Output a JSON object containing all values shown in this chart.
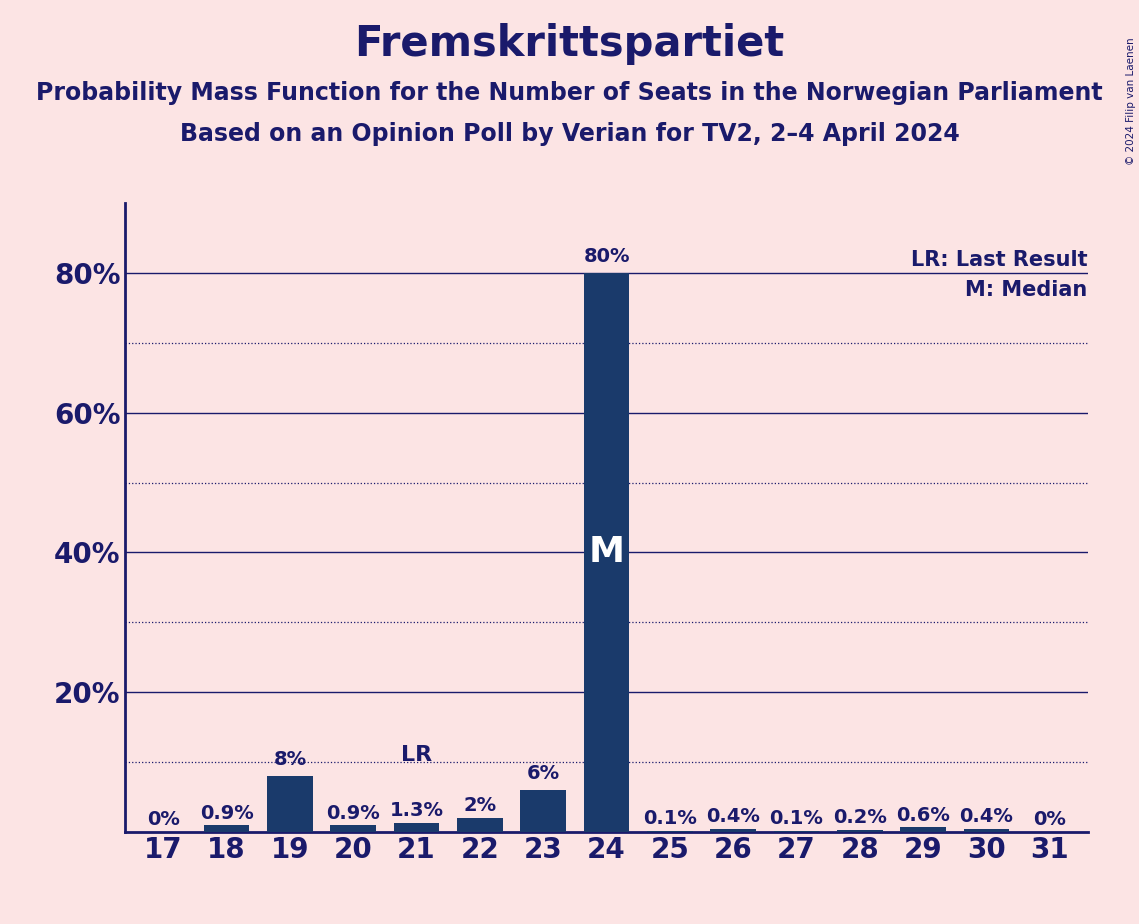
{
  "title": "Fremskrittspartiet",
  "subtitle1": "Probability Mass Function for the Number of Seats in the Norwegian Parliament",
  "subtitle2": "Based on an Opinion Poll by Verian for TV2, 2–4 April 2024",
  "copyright": "© 2024 Filip van Laenen",
  "categories": [
    17,
    18,
    19,
    20,
    21,
    22,
    23,
    24,
    25,
    26,
    27,
    28,
    29,
    30,
    31
  ],
  "values": [
    0.0,
    0.9,
    8.0,
    0.9,
    1.3,
    2.0,
    6.0,
    80.0,
    0.1,
    0.4,
    0.1,
    0.2,
    0.6,
    0.4,
    0.0
  ],
  "labels": [
    "0%",
    "0.9%",
    "8%",
    "0.9%",
    "1.3%",
    "2%",
    "6%",
    "80%",
    "0.1%",
    "0.4%",
    "0.1%",
    "0.2%",
    "0.6%",
    "0.4%",
    "0%"
  ],
  "bar_color": "#1a3a6b",
  "background_color": "#fce4e4",
  "text_color": "#1a1a6b",
  "median_seat": 24,
  "last_result_seat": 21,
  "ylim": [
    0,
    90
  ],
  "yticks": [
    0,
    20,
    40,
    60,
    80
  ],
  "ytick_labels": [
    "",
    "20%",
    "40%",
    "60%",
    "80%"
  ],
  "solid_gridlines": [
    20,
    40,
    60,
    80
  ],
  "dotted_gridlines": [
    10,
    30,
    50,
    70
  ],
  "legend_lr": "LR: Last Result",
  "legend_m": "M: Median",
  "title_fontsize": 30,
  "subtitle_fontsize": 17,
  "axis_label_fontsize": 20,
  "bar_label_fontsize": 14,
  "legend_fontsize": 15
}
